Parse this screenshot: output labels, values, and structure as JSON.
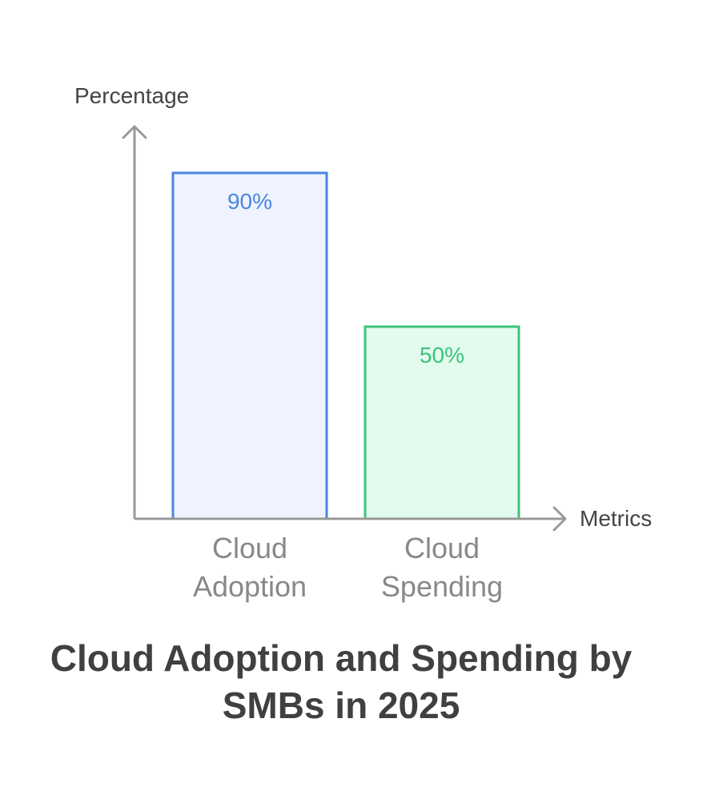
{
  "chart_data": {
    "type": "bar",
    "title_lines": [
      "Cloud Adoption and Spending by",
      "SMBs in 2025"
    ],
    "xlabel": "Metrics",
    "ylabel": "Percentage",
    "ylim": [
      0,
      100
    ],
    "grid": false,
    "categories": [
      {
        "lines": [
          "Cloud",
          "Adoption"
        ]
      },
      {
        "lines": [
          "Cloud",
          "Spending"
        ]
      }
    ],
    "values": [
      90,
      50
    ],
    "value_labels": [
      "90%",
      "50%"
    ],
    "colors": {
      "bar_strokes": [
        "#4a86e0",
        "#3cc47c"
      ],
      "bar_fills": [
        "#eef3fe",
        "#e2fbee"
      ],
      "value_text": [
        "#4a86e0",
        "#3cc47c"
      ],
      "axis": "#999999"
    }
  }
}
